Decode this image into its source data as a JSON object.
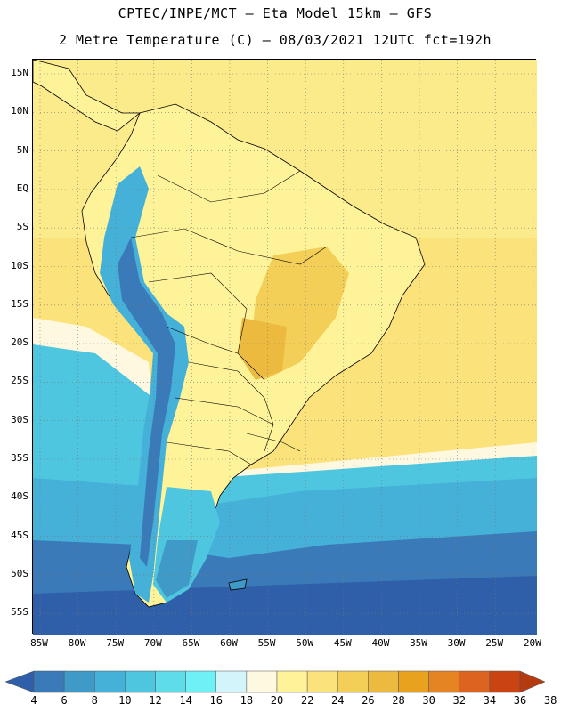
{
  "title_line1": "CPTEC/INPE/MCT –  Eta Model 15km – GFS",
  "title_line2": "2 Metre Temperature (C) – 08/03/2021 12UTC fct=192h",
  "lat_labels": [
    "15N",
    "10N",
    "5N",
    "EQ",
    "5S",
    "10S",
    "15S",
    "20S",
    "25S",
    "30S",
    "35S",
    "40S",
    "45S",
    "50S",
    "55S"
  ],
  "lon_labels": [
    "85W",
    "80W",
    "75W",
    "70W",
    "65W",
    "60W",
    "55W",
    "50W",
    "45W",
    "40W",
    "35W",
    "30W",
    "25W",
    "20W"
  ],
  "colorbar": {
    "labels": [
      "4",
      "6",
      "8",
      "10",
      "12",
      "14",
      "16",
      "18",
      "20",
      "22",
      "24",
      "26",
      "28",
      "30",
      "32",
      "34",
      "36",
      "38"
    ],
    "colors": [
      "#2f5fa8",
      "#3a7ab8",
      "#3f9ac8",
      "#45b0d8",
      "#4fc6df",
      "#5fdcea",
      "#6ff0f6",
      "#d2f4fa",
      "#fff8e0",
      "#fff39a",
      "#fbe27a",
      "#f4cf58",
      "#ecba3f",
      "#e8a21e",
      "#e58423",
      "#dd6420",
      "#c94313",
      "#b43a10"
    ]
  },
  "grid": "dotted"
}
